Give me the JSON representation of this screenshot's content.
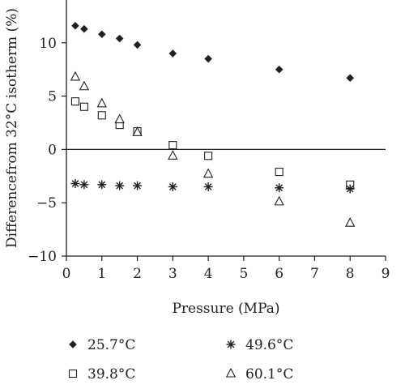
{
  "chart_data": {
    "type": "scatter",
    "xlabel": "Pressure (MPa)",
    "ylabel": "Differencefrom 32°C isotherm (%)",
    "xlim": [
      0,
      9
    ],
    "ylim": [
      -10,
      15
    ],
    "xticks": [
      0,
      1,
      2,
      3,
      4,
      5,
      6,
      7,
      8,
      9
    ],
    "yticks": [
      -10,
      -5,
      0,
      5,
      10
    ],
    "zero_line": true,
    "grid": false,
    "legend_position": "bottom",
    "series": [
      {
        "name": "25.7°C",
        "marker": "diamond",
        "points": [
          [
            0.25,
            11.6
          ],
          [
            0.5,
            11.3
          ],
          [
            1.0,
            10.8
          ],
          [
            1.5,
            10.4
          ],
          [
            2.0,
            9.8
          ],
          [
            3.0,
            9.0
          ],
          [
            4.0,
            8.5
          ],
          [
            6.0,
            7.5
          ],
          [
            8.0,
            6.7
          ]
        ]
      },
      {
        "name": "39.8°C",
        "marker": "square",
        "points": [
          [
            0.25,
            4.5
          ],
          [
            0.5,
            4.0
          ],
          [
            1.0,
            3.2
          ],
          [
            1.5,
            2.3
          ],
          [
            2.0,
            1.7
          ],
          [
            3.0,
            0.4
          ],
          [
            4.0,
            -0.6
          ],
          [
            6.0,
            -2.1
          ],
          [
            8.0,
            -3.3
          ]
        ]
      },
      {
        "name": "49.6°C",
        "marker": "asterisk",
        "points": [
          [
            0.25,
            -3.2
          ],
          [
            0.5,
            -3.3
          ],
          [
            1.0,
            -3.3
          ],
          [
            1.5,
            -3.4
          ],
          [
            2.0,
            -3.4
          ],
          [
            3.0,
            -3.5
          ],
          [
            4.0,
            -3.5
          ],
          [
            6.0,
            -3.6
          ],
          [
            8.0,
            -3.7
          ]
        ]
      },
      {
        "name": "60.1°C",
        "marker": "triangle",
        "points": [
          [
            0.25,
            6.8
          ],
          [
            0.5,
            5.9
          ],
          [
            1.0,
            4.3
          ],
          [
            1.5,
            2.8
          ],
          [
            2.0,
            1.6
          ],
          [
            3.0,
            -0.6
          ],
          [
            4.0,
            -2.3
          ],
          [
            6.0,
            -4.9
          ],
          [
            8.0,
            -6.9
          ]
        ]
      }
    ],
    "legend": [
      {
        "label": "25.7°C",
        "marker": "diamond"
      },
      {
        "label": "49.6°C",
        "marker": "asterisk"
      },
      {
        "label": "39.8°C",
        "marker": "square"
      },
      {
        "label": "60.1°C",
        "marker": "triangle"
      }
    ],
    "colors": {
      "ink": "#231f20",
      "background": "#ffffff"
    }
  }
}
